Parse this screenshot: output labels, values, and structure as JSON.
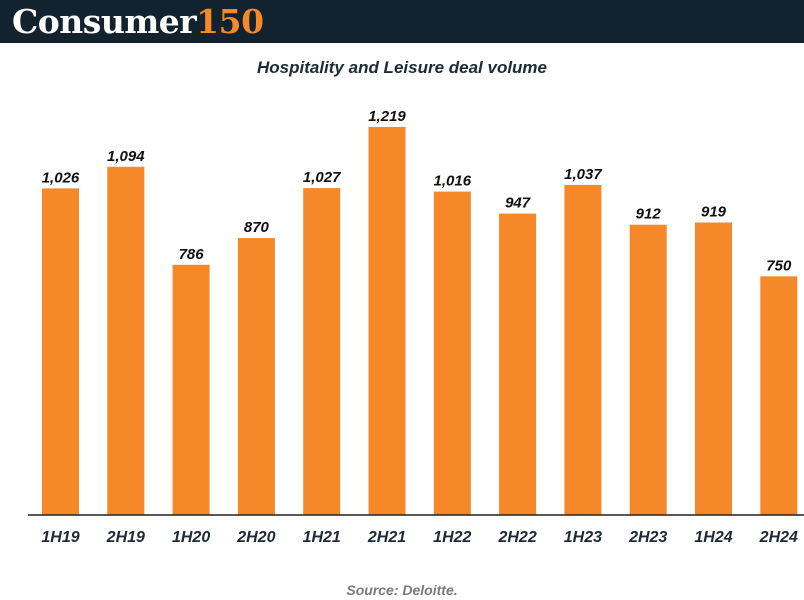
{
  "header": {
    "brand_word": "Consumer",
    "brand_number": "150"
  },
  "colors": {
    "header_bg": "#12232f",
    "bar": "#f5892a",
    "axis": "#222222",
    "label": "#111111",
    "tick": "#1e2a35"
  },
  "chart_data": {
    "type": "bar",
    "title": "Hospitality and Leisure deal volume",
    "xlabel": "",
    "ylabel": "",
    "ylim": [
      0,
      1219
    ],
    "grid": false,
    "categories": [
      "1H19",
      "2H19",
      "1H20",
      "2H20",
      "1H21",
      "2H21",
      "1H22",
      "2H22",
      "1H23",
      "2H23",
      "1H24",
      "2H24"
    ],
    "values": [
      1026,
      1094,
      786,
      870,
      1027,
      1219,
      1016,
      947,
      1037,
      912,
      919,
      750
    ],
    "value_labels": [
      "1,026",
      "1,094",
      "786",
      "870",
      "1,027",
      "1,219",
      "1,016",
      "947",
      "1,037",
      "912",
      "919",
      "750"
    ]
  },
  "footer": {
    "source": "Source: Deloitte."
  }
}
